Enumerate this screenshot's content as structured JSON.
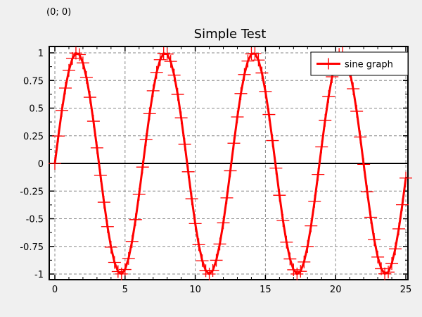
{
  "coordinate_readout": "(0; 0)",
  "chart_data": {
    "type": "line",
    "title": "Simple Test",
    "xlabel": "",
    "ylabel": "",
    "xlim": [
      0,
      25
    ],
    "ylim": [
      -1,
      1
    ],
    "x_ticks": [
      "0",
      "5",
      "10",
      "15",
      "20",
      "25"
    ],
    "y_ticks": [
      "1",
      "0.75",
      "0.5",
      "0.25",
      "0",
      "-0.25",
      "-0.5",
      "-0.75",
      "-1"
    ],
    "grid": true,
    "legend_position": "top-right",
    "series": [
      {
        "name": "sine graph",
        "color": "#ff0000",
        "marker": "plus",
        "function": "sin(x)",
        "x_start": 0,
        "x_end": 25,
        "x_step": 0.25
      }
    ]
  }
}
